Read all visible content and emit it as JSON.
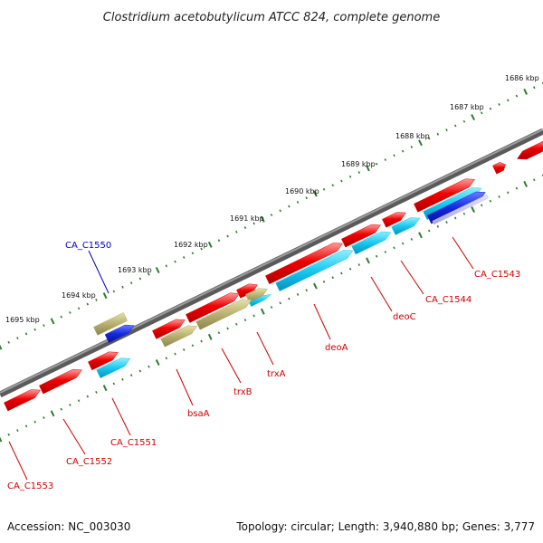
{
  "title": "Clostridium acetobutylicum ATCC 824, complete genome",
  "footer": {
    "accession": "Accession: NC_003030",
    "topology": "Topology: circular; Length: 3,940,880 bp; Genes: 3,777"
  },
  "colors": {
    "backbone": "#808080",
    "tick": "#2e7d2e",
    "gene_red": "#ee0000",
    "gene_cyan": "#18c8f0",
    "gene_khaki": "#b8b070",
    "gene_blue": "#1428e0",
    "gene_lilac": "#b8b4e0",
    "label_red": "#cc0000",
    "label_blue": "#0000cc"
  },
  "scale_ticks": [
    "1686 kbp",
    "1687 kbp",
    "1688 kbp",
    "1689 kbp",
    "1690 kbp",
    "1691 kbp",
    "1692 kbp",
    "1693 kbp",
    "1694 kbp",
    "1695 kbp"
  ],
  "gene_labels": [
    "CA_C1550",
    "CA_C1543",
    "CA_C1544",
    "deoC",
    "deoA",
    "trxA",
    "trxB",
    "bsaA",
    "CA_C1551",
    "CA_C1552",
    "CA_C1553"
  ]
}
